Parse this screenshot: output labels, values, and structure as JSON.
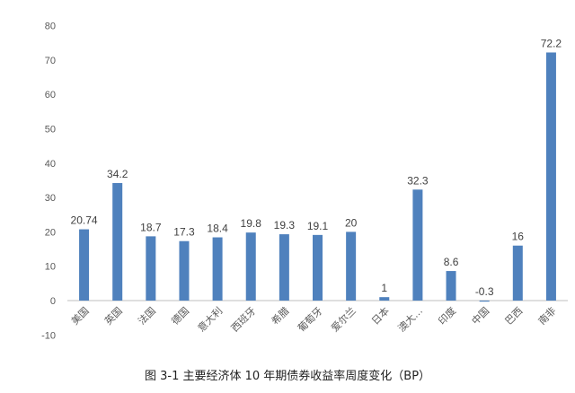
{
  "chart_data": {
    "type": "bar",
    "categories": [
      "美国",
      "英国",
      "法国",
      "德国",
      "意大利",
      "西班牙",
      "希腊",
      "葡萄牙",
      "爱尔兰",
      "日本",
      "澳大…",
      "印度",
      "中国",
      "巴西",
      "南非"
    ],
    "values": [
      20.74,
      34.2,
      18.7,
      17.3,
      18.4,
      19.8,
      19.3,
      19.1,
      20,
      1,
      32.3,
      8.6,
      -0.3,
      16,
      72.2
    ],
    "data_labels": [
      "20.74",
      "34.2",
      "18.7",
      "17.3",
      "18.4",
      "19.8",
      "19.3",
      "19.1",
      "20",
      "1",
      "32.3",
      "8.6",
      "-0.3",
      "16",
      "72.2"
    ],
    "ylim": [
      -10,
      80
    ],
    "yticks": [
      -10,
      0,
      10,
      20,
      30,
      40,
      50,
      60,
      70,
      80
    ],
    "grid": false,
    "bar_color": "#4F81BD"
  },
  "caption": "图 3-1 主要经济体 10 年期债券收益率周度变化（BP）"
}
